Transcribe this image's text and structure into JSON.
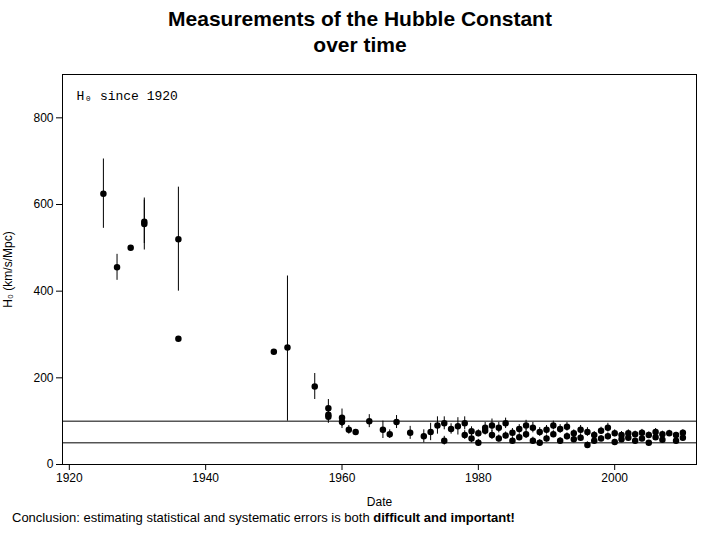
{
  "chart_data": {
    "type": "scatter",
    "title": "Measurements of the Hubble Constant",
    "subtitle": "over time",
    "xlabel": "Date",
    "ylabel": "H₀ (km/s/Mpc)",
    "annotation": "H₀ since 1920",
    "caption": [
      "Conclusion: estimating statistical and systematic errors is both",
      "difficult and important!"
    ],
    "color": "#000000",
    "marker": "circle",
    "grid": false,
    "xlim": [
      1919,
      2012
    ],
    "ylim": [
      0,
      900
    ],
    "xticks": [
      1920,
      1940,
      1960,
      1980,
      2000
    ],
    "yticks": [
      0,
      200,
      400,
      600,
      800
    ],
    "reference_lines": [
      100,
      50
    ],
    "x": [
      1925,
      1927,
      1929,
      1931,
      1931,
      1936,
      1936,
      1950,
      1952,
      1956,
      1958,
      1958,
      1958,
      1960,
      1960,
      1961,
      1962,
      1964,
      1966,
      1967,
      1968,
      1970,
      1972,
      1973,
      1974,
      1975,
      1975,
      1976,
      1977,
      1978,
      1978,
      1979,
      1979,
      1980,
      1980,
      1981,
      1981,
      1982,
      1982,
      1983,
      1983,
      1984,
      1984,
      1985,
      1985,
      1986,
      1986,
      1987,
      1987,
      1988,
      1988,
      1989,
      1989,
      1990,
      1990,
      1991,
      1991,
      1992,
      1992,
      1993,
      1993,
      1994,
      1994,
      1995,
      1995,
      1996,
      1996,
      1997,
      1997,
      1998,
      1998,
      1999,
      1999,
      2000,
      2000,
      2001,
      2001,
      2002,
      2002,
      2003,
      2003,
      2004,
      2004,
      2005,
      2005,
      2006,
      2006,
      2007,
      2007,
      2008,
      2009,
      2009,
      2010,
      2010
    ],
    "values": [
      625,
      455,
      500,
      555,
      560,
      290,
      520,
      260,
      270,
      180,
      130,
      115,
      110,
      98,
      108,
      80,
      75,
      100,
      80,
      70,
      98,
      73,
      65,
      75,
      90,
      95,
      55,
      82,
      88,
      95,
      68,
      60,
      77,
      72,
      50,
      85,
      78,
      90,
      68,
      85,
      60,
      67,
      95,
      73,
      55,
      82,
      63,
      90,
      70,
      55,
      85,
      75,
      50,
      80,
      60,
      90,
      70,
      55,
      82,
      65,
      87,
      72,
      58,
      80,
      62,
      45,
      75,
      68,
      55,
      78,
      60,
      85,
      65,
      72,
      52,
      68,
      58,
      72,
      62,
      70,
      55,
      73,
      60,
      68,
      50,
      75,
      63,
      70,
      57,
      72,
      68,
      55,
      73,
      62
    ],
    "yerr_lo": [
      80,
      30,
      0,
      60,
      50,
      0,
      120,
      0,
      170,
      30,
      20,
      15,
      15,
      15,
      20,
      10,
      0,
      15,
      20,
      10,
      15,
      15,
      15,
      20,
      20,
      15,
      10,
      12,
      20,
      15,
      10,
      10,
      10,
      8,
      8,
      12,
      10,
      15,
      10,
      12,
      8,
      8,
      12,
      10,
      8,
      10,
      8,
      12,
      10,
      8,
      12,
      10,
      7,
      10,
      8,
      10,
      8,
      7,
      10,
      8,
      10,
      8,
      7,
      10,
      8,
      7,
      10,
      8,
      7,
      8,
      7,
      10,
      8,
      8,
      6,
      8,
      7,
      8,
      7,
      7,
      6,
      8,
      6,
      7,
      5,
      8,
      6,
      7,
      5,
      7,
      6,
      5,
      7,
      5
    ],
    "yerr_hi": [
      80,
      30,
      0,
      60,
      50,
      0,
      120,
      0,
      165,
      30,
      20,
      15,
      15,
      15,
      20,
      10,
      0,
      15,
      20,
      10,
      15,
      15,
      15,
      20,
      20,
      15,
      10,
      12,
      20,
      15,
      10,
      10,
      10,
      8,
      8,
      12,
      10,
      15,
      10,
      12,
      8,
      8,
      12,
      10,
      8,
      10,
      8,
      12,
      10,
      8,
      12,
      10,
      7,
      10,
      8,
      10,
      8,
      7,
      10,
      8,
      10,
      8,
      7,
      10,
      8,
      7,
      10,
      8,
      7,
      8,
      7,
      10,
      8,
      8,
      6,
      8,
      7,
      8,
      7,
      7,
      6,
      8,
      6,
      7,
      5,
      8,
      6,
      7,
      5,
      7,
      6,
      5,
      7,
      5
    ]
  }
}
